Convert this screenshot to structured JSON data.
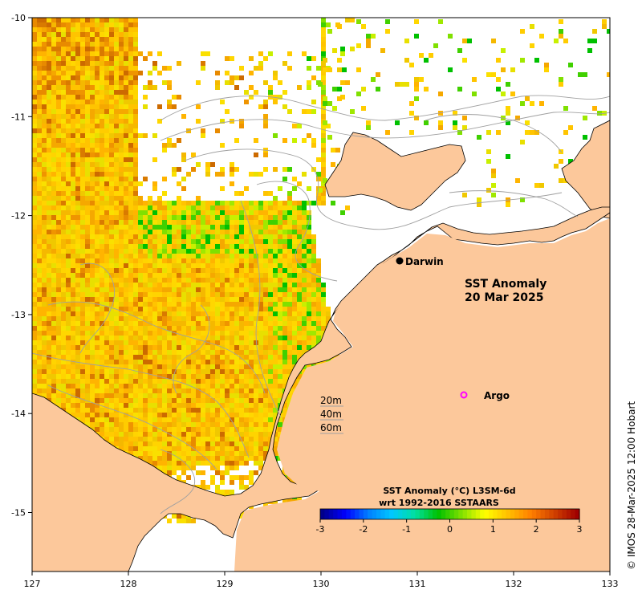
{
  "map": {
    "title_line1": "SST Anomaly",
    "title_line2": "20 Mar 2025",
    "credit": "© IMOS 28-Mar-2025 12:00 Hobart",
    "x_ticks": [
      "127",
      "128",
      "129",
      "130",
      "131",
      "132",
      "133"
    ],
    "y_ticks": [
      "-10",
      "-11",
      "-12",
      "-13",
      "-14",
      "-15"
    ],
    "places": [
      {
        "label": "Darwin",
        "marker": "filled-circle"
      },
      {
        "label": "Argo",
        "marker": "open-circle"
      }
    ],
    "contour_labels": [
      "20m",
      "40m",
      "60m"
    ],
    "colorbar": {
      "title_line1": "SST Anomaly (°C) L3SM-6d",
      "title_line2": "wrt 1992-2016 SSTAARS",
      "ticks": [
        "-3",
        "-2",
        "-1",
        "0",
        "1",
        "2",
        "3"
      ],
      "range": [
        -3,
        3
      ],
      "colors": [
        "#00008b",
        "#0000ff",
        "#0080ff",
        "#00c8ff",
        "#00e0a0",
        "#00c000",
        "#80e000",
        "#ffff00",
        "#ffc000",
        "#ff8000",
        "#d04000",
        "#a00000"
      ]
    },
    "colors": {
      "land": "#fcc89b",
      "sea_missing": "#ffffff",
      "contour": "#a0a0a0",
      "argo": "#ff00ff"
    }
  }
}
